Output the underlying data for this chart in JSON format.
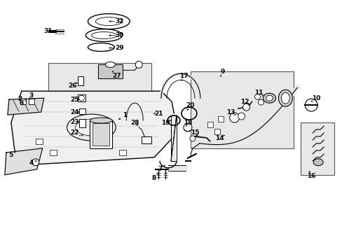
{
  "bg_color": "#ffffff",
  "box_fill": "#e8e8e8",
  "fig_width": 4.89,
  "fig_height": 3.6,
  "dpi": 100,
  "label_fontsize": 6.5
}
